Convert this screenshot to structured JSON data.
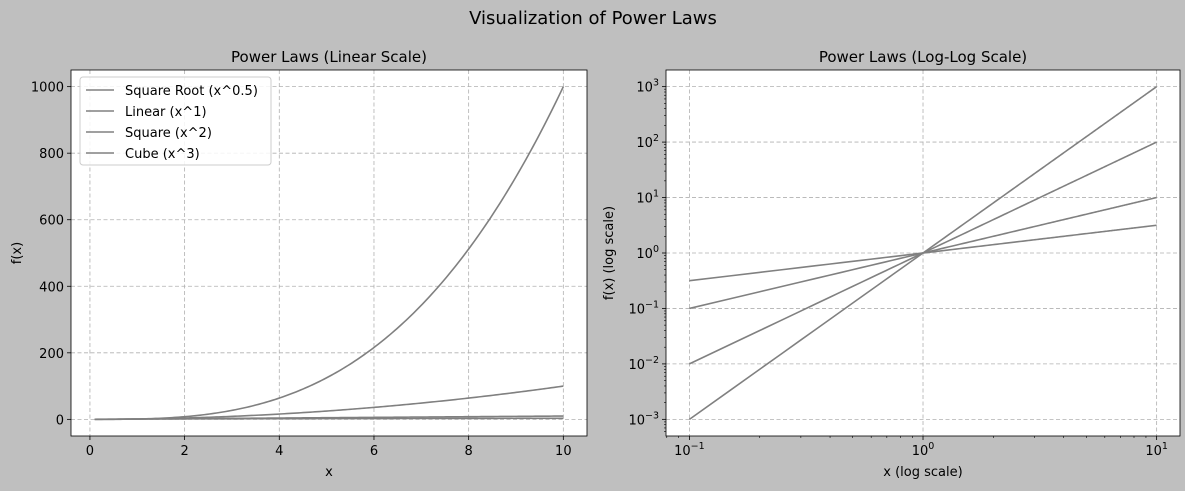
{
  "figure": {
    "suptitle": "Visualization of Power Laws",
    "background": "#bfbfbf",
    "line_color": "#808080"
  },
  "chart_data": [
    {
      "type": "line",
      "title": "Power Laws (Linear Scale)",
      "xlabel": "x",
      "ylabel": "f(x)",
      "xscale": "linear",
      "yscale": "linear",
      "xlim": [
        -0.4,
        10.5
      ],
      "ylim": [
        -50,
        1050
      ],
      "xticks": [
        0,
        2,
        4,
        6,
        8,
        10
      ],
      "xtick_labels": [
        "0",
        "2",
        "4",
        "6",
        "8",
        "10"
      ],
      "yticks": [
        0,
        200,
        400,
        600,
        800,
        1000
      ],
      "ytick_labels": [
        "0",
        "200",
        "400",
        "600",
        "800",
        "1000"
      ],
      "grid": true,
      "legend": "upper-left",
      "x_domain": [
        0.1,
        10
      ],
      "series": [
        {
          "name": "Square Root (x^0.5)",
          "exponent": 0.5
        },
        {
          "name": "Linear (x^1)",
          "exponent": 1
        },
        {
          "name": "Square (x^2)",
          "exponent": 2
        },
        {
          "name": "Cube (x^3)",
          "exponent": 3
        }
      ]
    },
    {
      "type": "line",
      "title": "Power Laws (Log-Log Scale)",
      "xlabel": "x (log scale)",
      "ylabel": "f(x) (log scale)",
      "xscale": "log",
      "yscale": "log",
      "xlim": [
        0.0794,
        12.59
      ],
      "ylim": [
        0.000501,
        1995
      ],
      "xticks": [
        0.1,
        1,
        10
      ],
      "xtick_labels": [
        {
          "base": "10",
          "exp": "−1"
        },
        {
          "base": "10",
          "exp": "0"
        },
        {
          "base": "10",
          "exp": "1"
        }
      ],
      "yticks": [
        0.001,
        0.01,
        0.1,
        1,
        10,
        100,
        1000
      ],
      "ytick_labels": [
        {
          "base": "10",
          "exp": "−3"
        },
        {
          "base": "10",
          "exp": "−2"
        },
        {
          "base": "10",
          "exp": "−1"
        },
        {
          "base": "10",
          "exp": "0"
        },
        {
          "base": "10",
          "exp": "1"
        },
        {
          "base": "10",
          "exp": "2"
        },
        {
          "base": "10",
          "exp": "3"
        }
      ],
      "grid": true,
      "legend": "none",
      "x_domain": [
        0.1,
        10
      ],
      "series": [
        {
          "exponent": 0.5
        },
        {
          "exponent": 1
        },
        {
          "exponent": 2
        },
        {
          "exponent": 3
        }
      ]
    }
  ]
}
